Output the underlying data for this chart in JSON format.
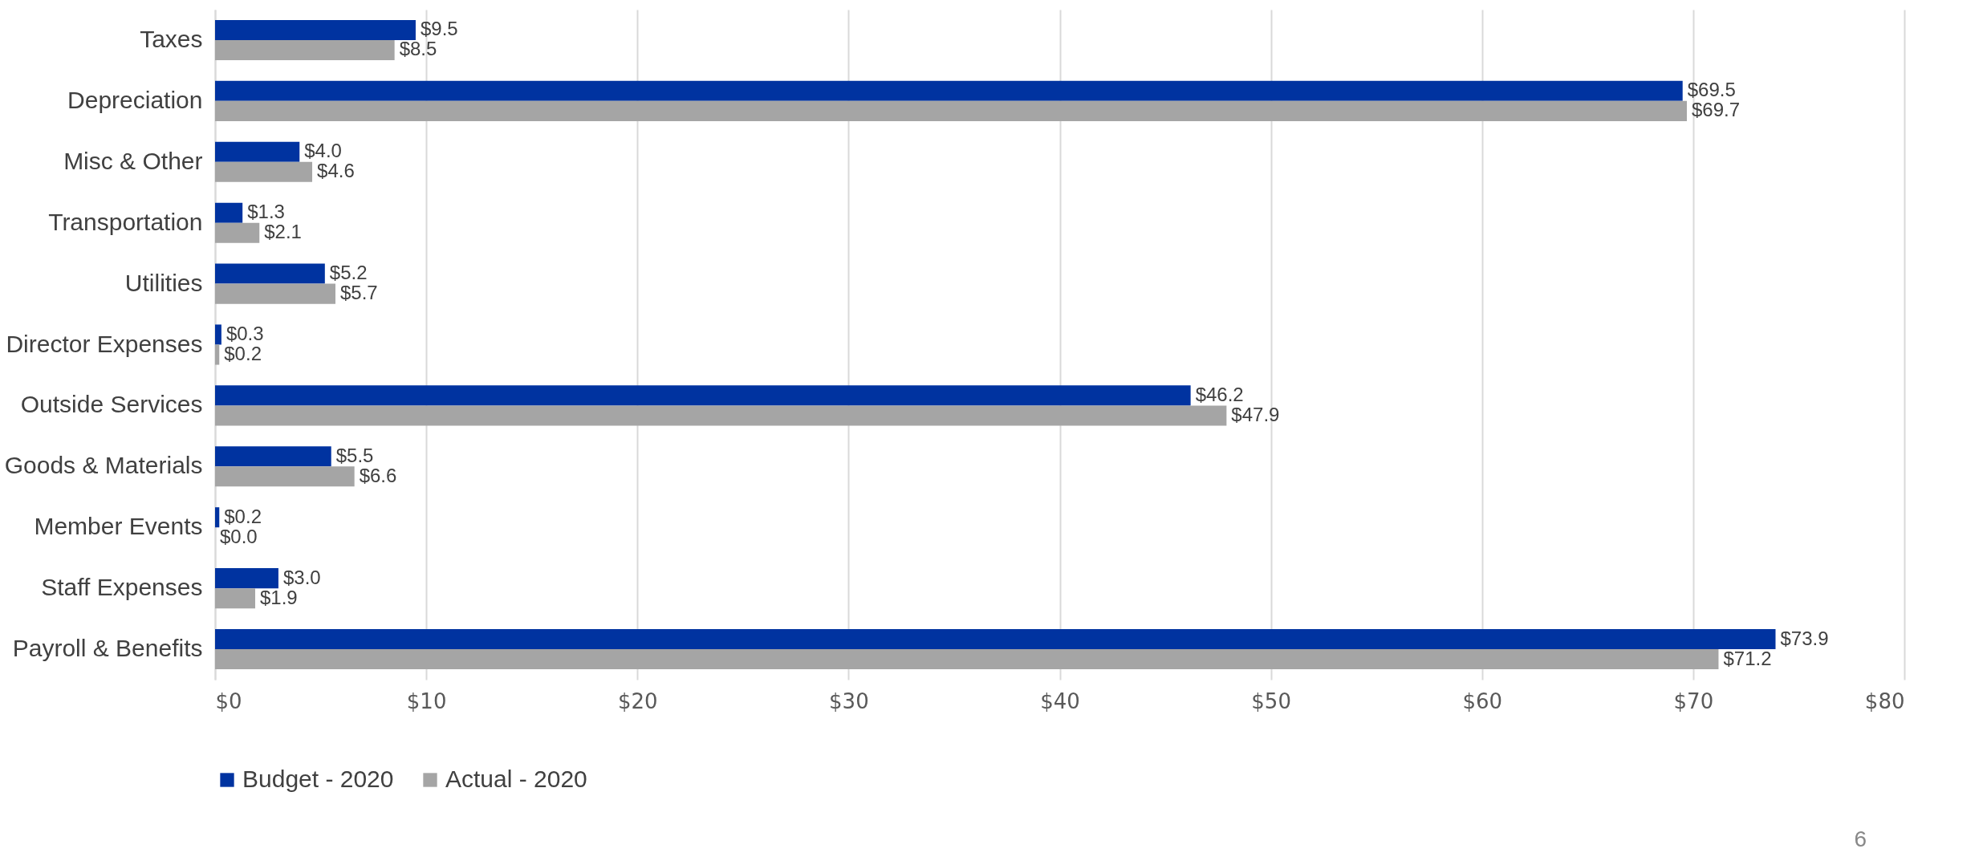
{
  "chart_data": {
    "type": "bar",
    "orientation": "horizontal",
    "categories": [
      "Taxes",
      "Depreciation",
      "Misc & Other",
      "Transportation",
      "Utilities",
      "Director Expenses",
      "Outside Services",
      "Goods & Materials",
      "Member Events",
      "Staff Expenses",
      "Payroll & Benefits"
    ],
    "series": [
      {
        "name": "Budget - 2020",
        "color": "#0033a0",
        "values": [
          9.5,
          69.5,
          4.0,
          1.3,
          5.2,
          0.3,
          46.2,
          5.5,
          0.2,
          3.0,
          73.9
        ],
        "value_labels": [
          "$9.5",
          "$69.5",
          "$4.0",
          "$1.3",
          "$5.2",
          "$0.3",
          "$46.2",
          "$5.5",
          "$0.2",
          "$3.0",
          "$73.9"
        ]
      },
      {
        "name": "Actual - 2020",
        "color": "#a5a5a5",
        "values": [
          8.5,
          69.7,
          4.6,
          2.1,
          5.7,
          0.2,
          47.9,
          6.6,
          0.0,
          1.9,
          71.2
        ],
        "value_labels": [
          "$8.5",
          "$69.7",
          "$4.6",
          "$2.1",
          "$5.7",
          "$0.2",
          "$47.9",
          "$6.6",
          "$0.0",
          "$1.9",
          "$71.2"
        ]
      }
    ],
    "xlim": [
      0,
      80
    ],
    "xticks": [
      {
        "value": 0,
        "label": "$0"
      },
      {
        "value": 10,
        "label": "$10"
      },
      {
        "value": 20,
        "label": "$20"
      },
      {
        "value": 30,
        "label": "$30"
      },
      {
        "value": 40,
        "label": "$40"
      },
      {
        "value": 50,
        "label": "$50"
      },
      {
        "value": 60,
        "label": "$60"
      },
      {
        "value": 70,
        "label": "$70"
      },
      {
        "value": 80,
        "label": "$80"
      }
    ],
    "grid": "x",
    "legend": "bottom",
    "annotations": [
      "6"
    ]
  }
}
